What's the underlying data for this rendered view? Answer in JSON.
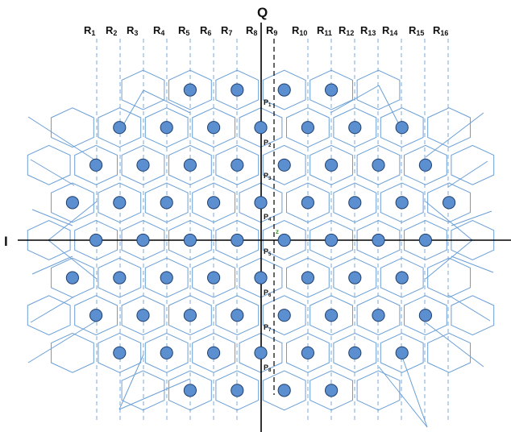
{
  "axes": {
    "horizontal": "I",
    "vertical": "Q"
  },
  "regions": [
    {
      "name": "R",
      "sub": "1"
    },
    {
      "name": "R",
      "sub": "2"
    },
    {
      "name": "R",
      "sub": "3"
    },
    {
      "name": "R",
      "sub": "4"
    },
    {
      "name": "R",
      "sub": "5"
    },
    {
      "name": "R",
      "sub": "6"
    },
    {
      "name": "R",
      "sub": "7"
    },
    {
      "name": "R",
      "sub": "8"
    },
    {
      "name": "R",
      "sub": "9"
    },
    {
      "name": "R",
      "sub": "10"
    },
    {
      "name": "R",
      "sub": "11"
    },
    {
      "name": "R",
      "sub": "12"
    },
    {
      "name": "R",
      "sub": "13"
    },
    {
      "name": "R",
      "sub": "14"
    },
    {
      "name": "R",
      "sub": "15"
    },
    {
      "name": "R",
      "sub": "16"
    }
  ],
  "points": [
    {
      "name": "P",
      "sub": "1"
    },
    {
      "name": "P",
      "sub": "2"
    },
    {
      "name": "P",
      "sub": "3"
    },
    {
      "name": "P",
      "sub": "4"
    },
    {
      "name": "P",
      "sub": "5"
    },
    {
      "name": "P",
      "sub": "6"
    },
    {
      "name": "P",
      "sub": "7"
    },
    {
      "name": "P",
      "sub": "8"
    }
  ],
  "marker": "z",
  "constellation": {
    "rows": [
      {
        "row": -4,
        "columns": [
          -3,
          -1,
          1,
          3
        ]
      },
      {
        "row": -3,
        "columns": [
          -6,
          -4,
          -2,
          0,
          2,
          4,
          6
        ]
      },
      {
        "row": -2,
        "columns": [
          -7,
          -5,
          -3,
          -1,
          1,
          3,
          5,
          7
        ]
      },
      {
        "row": -1,
        "columns": [
          -8,
          -6,
          -4,
          -2,
          0,
          2,
          4,
          6,
          8
        ]
      },
      {
        "row": 0,
        "columns": [
          -7,
          -5,
          -3,
          -1,
          1,
          3,
          5,
          7
        ]
      },
      {
        "row": 1,
        "columns": [
          -8,
          -6,
          -4,
          -2,
          0,
          2,
          4,
          6
        ]
      },
      {
        "row": 2,
        "columns": [
          -7,
          -5,
          -3,
          -1,
          1,
          3,
          5,
          7
        ]
      },
      {
        "row": 3,
        "columns": [
          -6,
          -4,
          -2,
          0,
          2,
          4,
          6
        ]
      },
      {
        "row": 4,
        "columns": [
          -3,
          -1,
          1,
          3
        ]
      }
    ]
  },
  "colors": {
    "point_fill": "#5b8fd0",
    "point_stroke": "#1f3f6e",
    "grid": "#6a9fd6",
    "guide": "#6a9fd6",
    "axis": "#000000"
  }
}
